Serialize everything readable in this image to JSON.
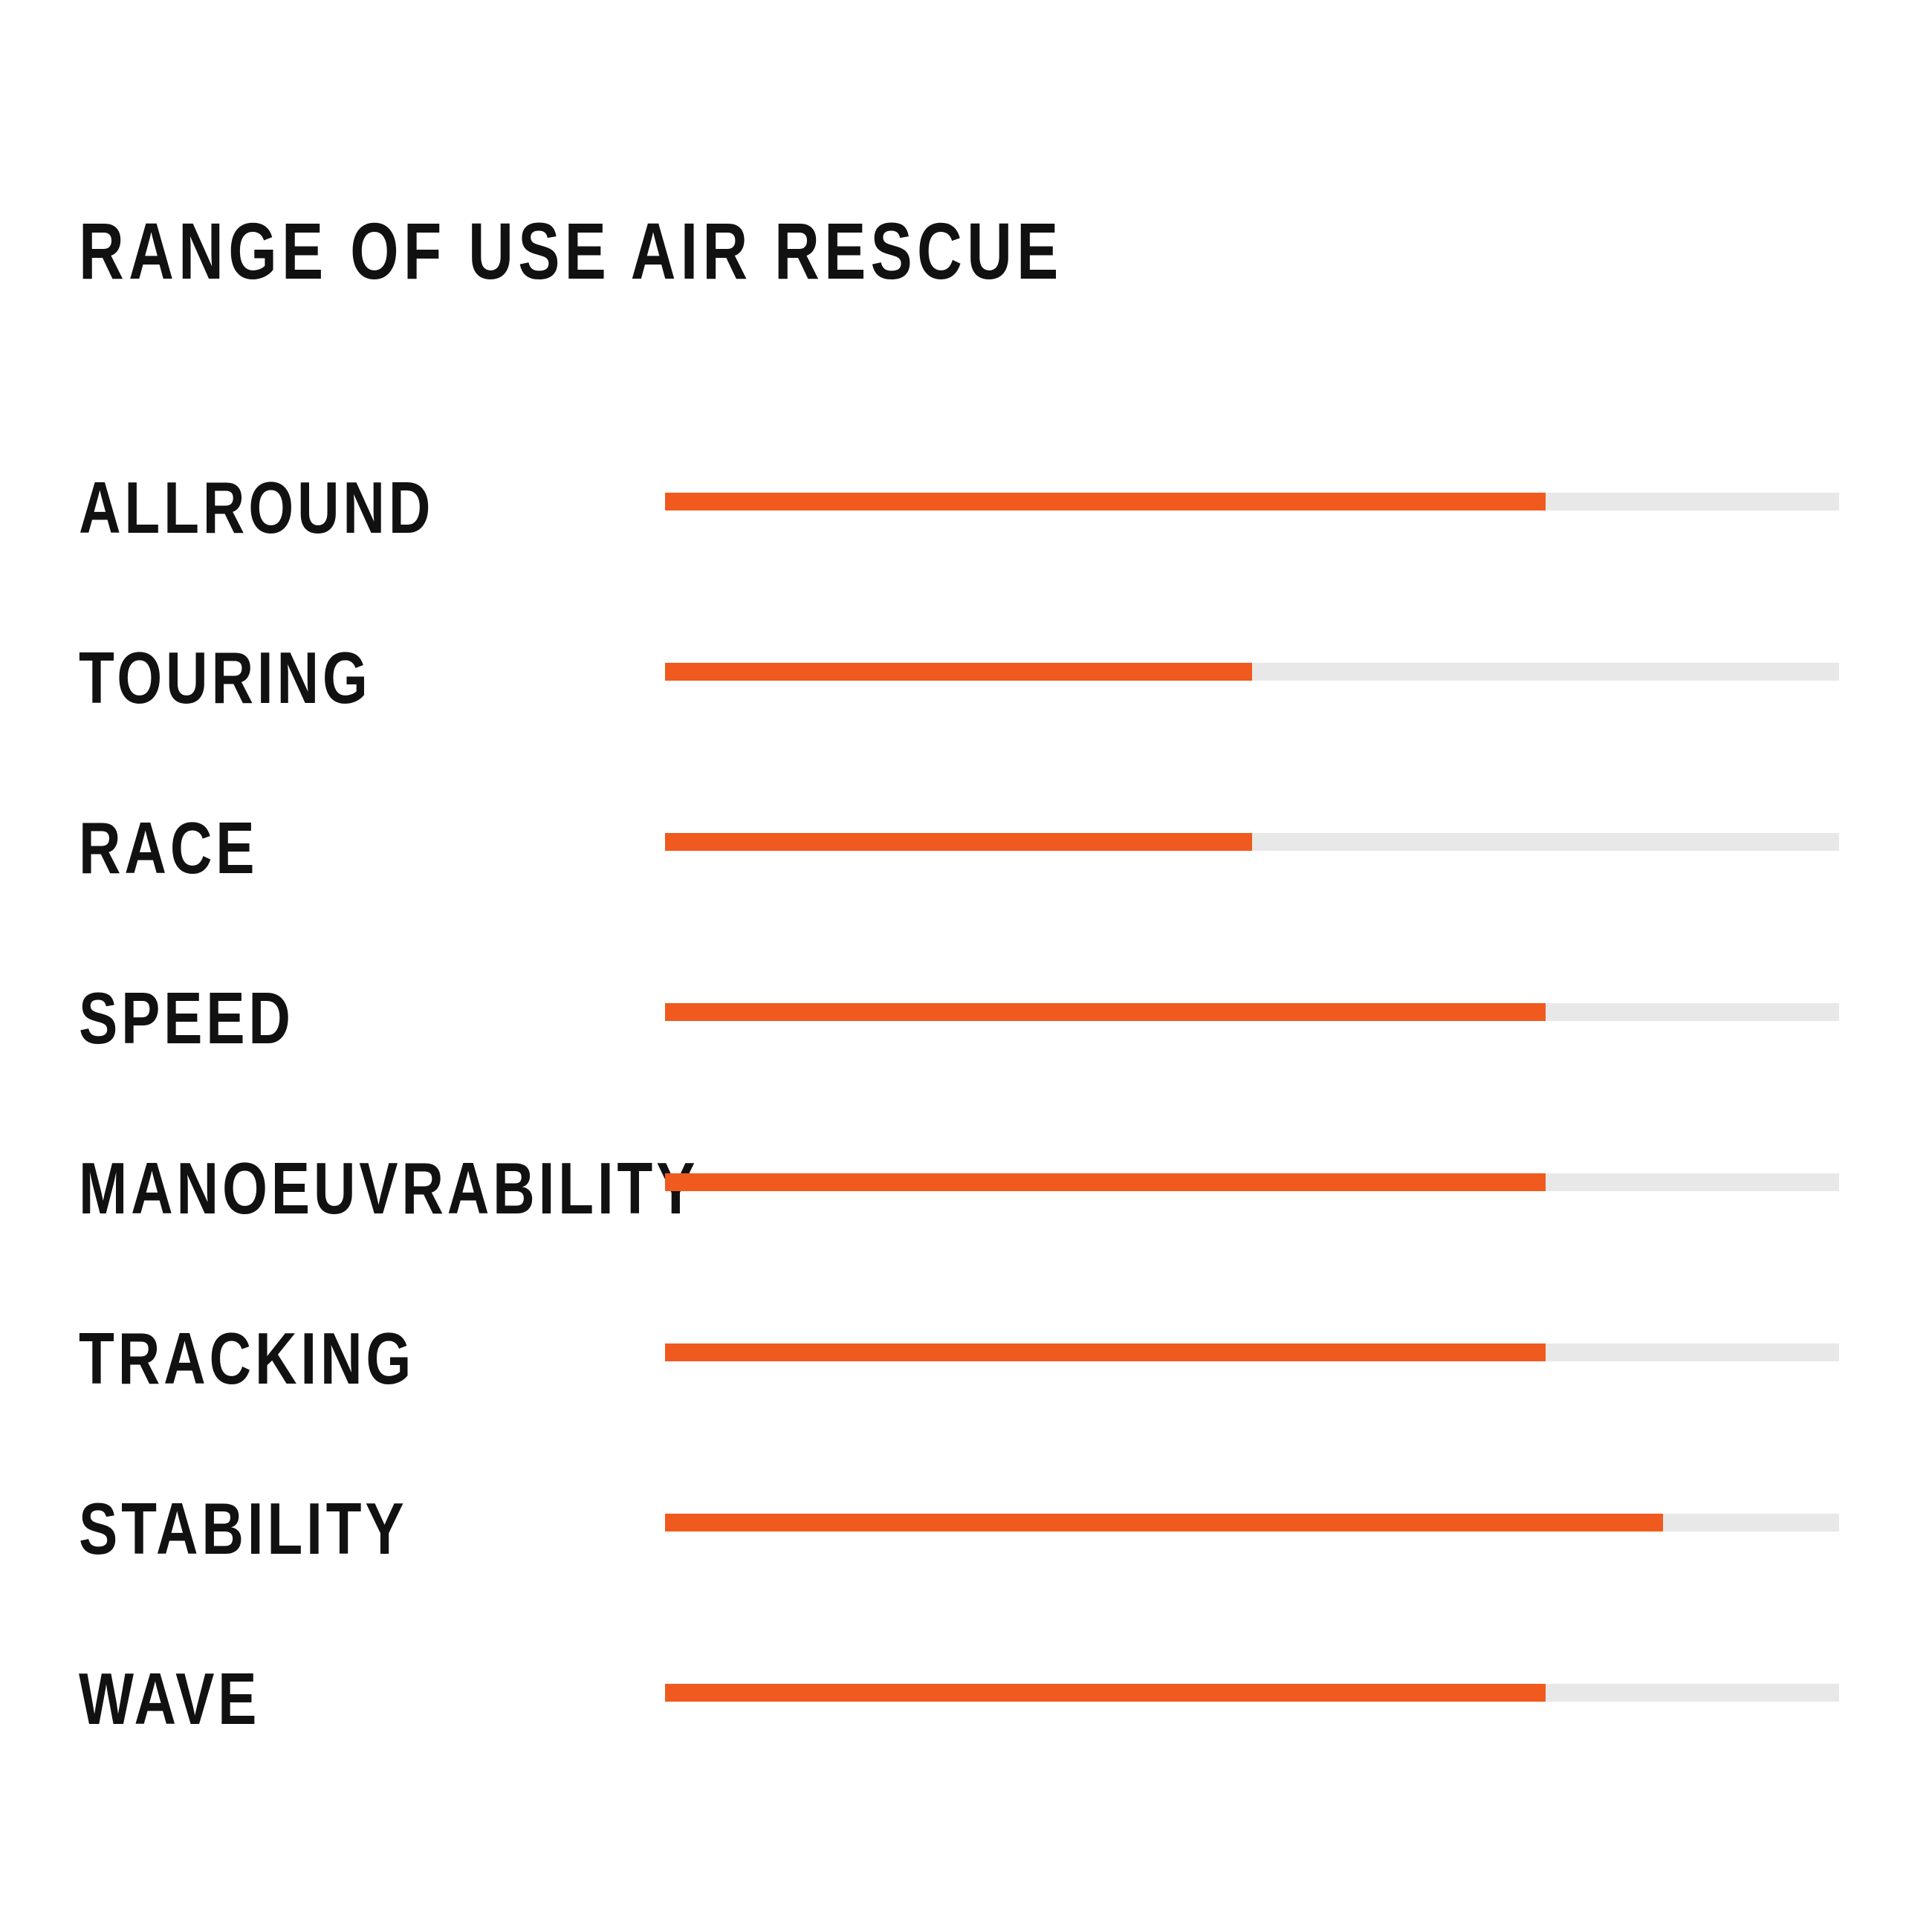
{
  "chart_data": {
    "type": "bar",
    "title": "RANGE OF USE AIR RESCUE",
    "categories": [
      "ALLROUND",
      "TOURING",
      "RACE",
      "SPEED",
      "MANOEUVRABILITY",
      "TRACKING",
      "STABILITY",
      "WAVE"
    ],
    "values": [
      0.75,
      0.5,
      0.5,
      0.75,
      0.75,
      0.75,
      0.85,
      0.75
    ],
    "value_scale": "fraction of full bar (0-1)",
    "orientation": "horizontal",
    "ylim": [
      0,
      1
    ],
    "grid": false,
    "colors": {
      "fill": "#f05a1e",
      "track": "#e8e8e8",
      "text": "#111111"
    }
  }
}
